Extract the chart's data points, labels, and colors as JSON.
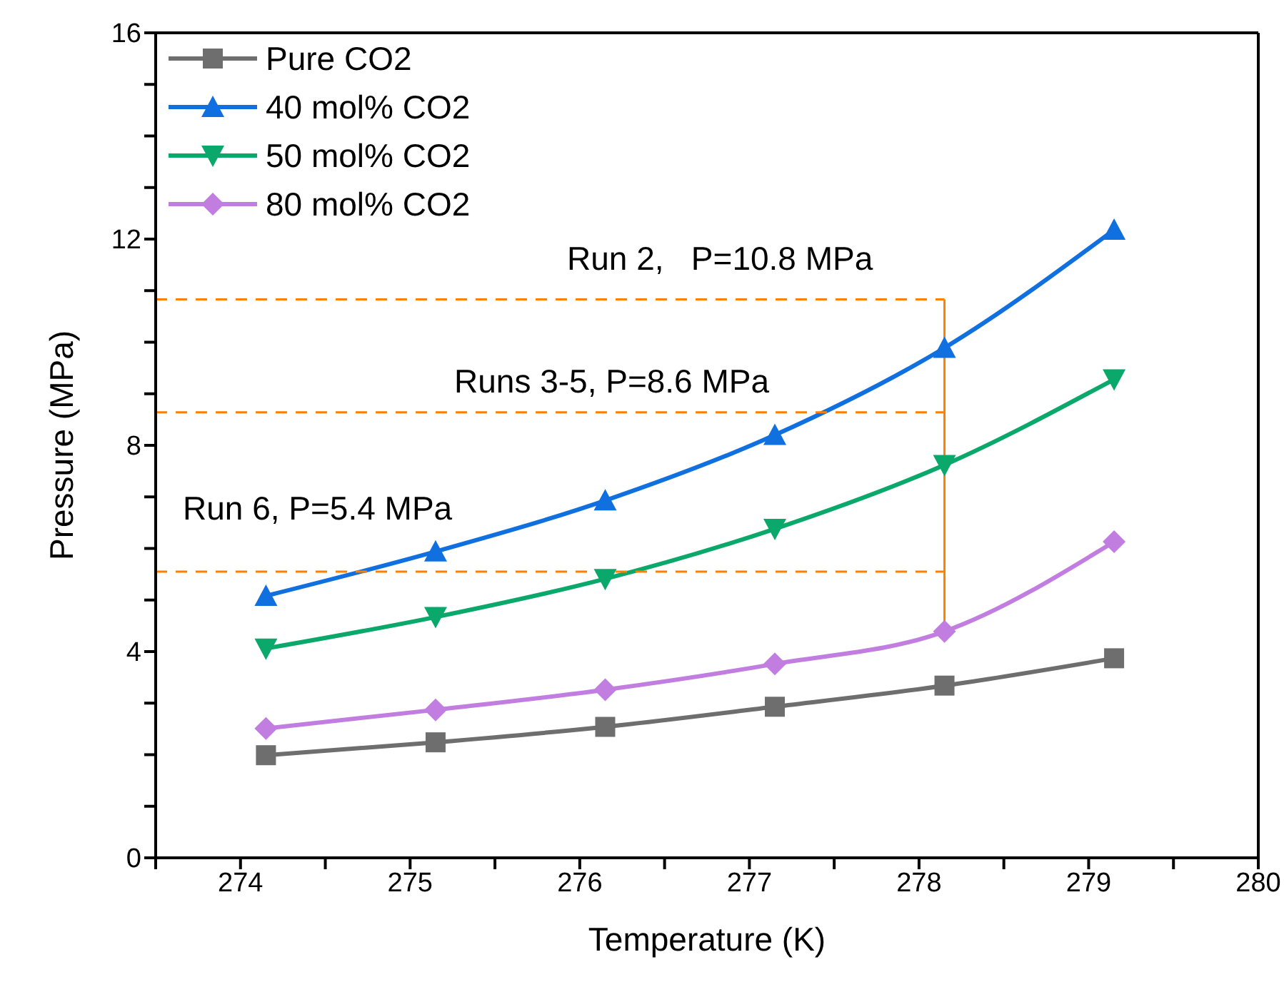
{
  "chart_data": {
    "type": "line",
    "xlabel": "Temperature (K)",
    "ylabel": "Pressure (MPa)",
    "xlim": [
      273.5,
      280
    ],
    "xticks": [
      274,
      275,
      276,
      277,
      278,
      279,
      280,
      {
        "value": 273.5,
        "label": null
      },
      {
        "value": 274.5,
        "label": null
      },
      {
        "value": 275.5,
        "label": null
      },
      {
        "value": 276.5,
        "label": null
      },
      {
        "value": 277.5,
        "label": null
      },
      {
        "value": 278.5,
        "label": null
      },
      {
        "value": 279.5,
        "label": null
      }
    ],
    "ylim": [
      0,
      16
    ],
    "yticks": [
      0,
      4,
      8,
      12,
      16,
      {
        "value": 1,
        "label": null
      },
      {
        "value": 2,
        "label": null
      },
      {
        "value": 3,
        "label": null
      },
      {
        "value": 5,
        "label": null
      },
      {
        "value": 6,
        "label": null
      },
      {
        "value": 7,
        "label": null
      },
      {
        "value": 9,
        "label": null
      },
      {
        "value": 10,
        "label": null
      },
      {
        "value": 11,
        "label": null
      },
      {
        "value": 13,
        "label": null
      },
      {
        "value": 14,
        "label": null
      },
      {
        "value": 15,
        "label": null
      }
    ],
    "x": [
      274.15,
      275.15,
      276.15,
      277.15,
      278.15,
      279.15
    ],
    "series": [
      {
        "name": "Pure CO2",
        "color": "#6e6e6e",
        "marker": "square",
        "values": [
          1.99,
          2.24,
          2.54,
          2.93,
          3.34,
          3.87
        ]
      },
      {
        "name": "40 mol% CO2",
        "color": "#1170e0",
        "marker": "triangle",
        "values": [
          5.08,
          5.94,
          6.93,
          8.2,
          9.89,
          12.18
        ]
      },
      {
        "name": "50 mol% CO2",
        "color": "#0aa86a",
        "marker": "triangle-down",
        "values": [
          4.06,
          4.67,
          5.41,
          6.38,
          7.62,
          9.28
        ]
      },
      {
        "name": "80 mol% CO2",
        "color": "#c27de0",
        "marker": "diamond",
        "values": [
          2.51,
          2.87,
          3.26,
          3.76,
          4.39,
          6.13
        ]
      }
    ],
    "ref_lines": [
      {
        "axis": "y",
        "value": 10.83,
        "label": "Run 2,   P=10.8 MPa",
        "color": "#ff8000",
        "line_style": "dashed"
      },
      {
        "axis": "y",
        "value": 8.64,
        "label": "Runs 3-5, P=8.6 MPa",
        "color": "#ff8000",
        "line_style": "dashed"
      },
      {
        "axis": "y",
        "value": 5.55,
        "label": "Run 6, P=5.4 MPa",
        "color": "#ff8000",
        "line_style": "dashed"
      },
      {
        "axis": "x",
        "value": 278.15,
        "color": "#ff8000",
        "line_style": "solid"
      }
    ],
    "legend": "top left",
    "grid": false
  }
}
